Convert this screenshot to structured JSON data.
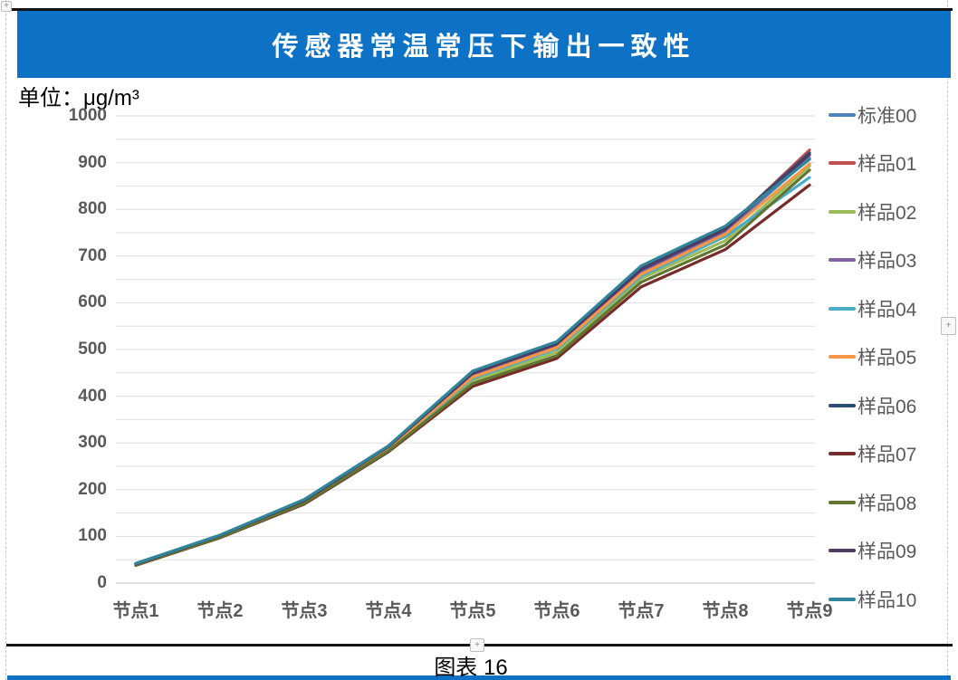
{
  "page": {
    "unit_label": "单位：μg/m³",
    "caption": "图表 16",
    "banner_color": "#0d72c6",
    "plus_glyph": "+"
  },
  "chart_data": {
    "type": "line",
    "title": "传感器常温常压下输出一致性",
    "ylabel": "μg/m³",
    "xlabel": "",
    "ylim": [
      0,
      1000
    ],
    "ytick_step": 100,
    "gridline_step": 50,
    "grid": true,
    "legend_position": "right",
    "categories": [
      "节点1",
      "节点2",
      "节点3",
      "节点4",
      "节点5",
      "节点6",
      "节点7",
      "节点8",
      "节点9"
    ],
    "series": [
      {
        "name": "标准00",
        "color": "#4F81BD",
        "values": [
          40,
          100,
          175,
          290,
          443,
          507,
          665,
          752,
          910
        ]
      },
      {
        "name": "样品01",
        "color": "#C0504D",
        "values": [
          41,
          101,
          177,
          292,
          446,
          510,
          669,
          756,
          927
        ]
      },
      {
        "name": "样品02",
        "color": "#9BBB59",
        "values": [
          39,
          99,
          172,
          286,
          433,
          494,
          652,
          733,
          893
        ]
      },
      {
        "name": "样品03",
        "color": "#8064A2",
        "values": [
          41,
          101,
          176,
          291,
          447,
          511,
          667,
          753,
          916
        ]
      },
      {
        "name": "样品04",
        "color": "#4BACC6",
        "values": [
          40,
          100,
          174,
          288,
          438,
          501,
          657,
          742,
          868
        ]
      },
      {
        "name": "样品05",
        "color": "#F79646",
        "values": [
          40,
          100,
          175,
          289,
          441,
          504,
          661,
          747,
          897
        ]
      },
      {
        "name": "样品06",
        "color": "#2C4D75",
        "values": [
          42,
          102,
          178,
          293,
          450,
          514,
          673,
          759,
          921
        ]
      },
      {
        "name": "样品07",
        "color": "#772C2A",
        "values": [
          38,
          97,
          169,
          281,
          421,
          481,
          634,
          714,
          852
        ]
      },
      {
        "name": "样品08",
        "color": "#5F7530",
        "values": [
          39,
          98,
          171,
          283,
          427,
          487,
          644,
          724,
          884
        ]
      },
      {
        "name": "样品09",
        "color": "#4D3B62",
        "values": [
          41,
          102,
          177,
          292,
          449,
          512,
          671,
          757,
          918
        ]
      },
      {
        "name": "样品10",
        "color": "#31859B",
        "values": [
          42,
          103,
          179,
          294,
          454,
          517,
          679,
          764,
          907
        ]
      }
    ]
  }
}
